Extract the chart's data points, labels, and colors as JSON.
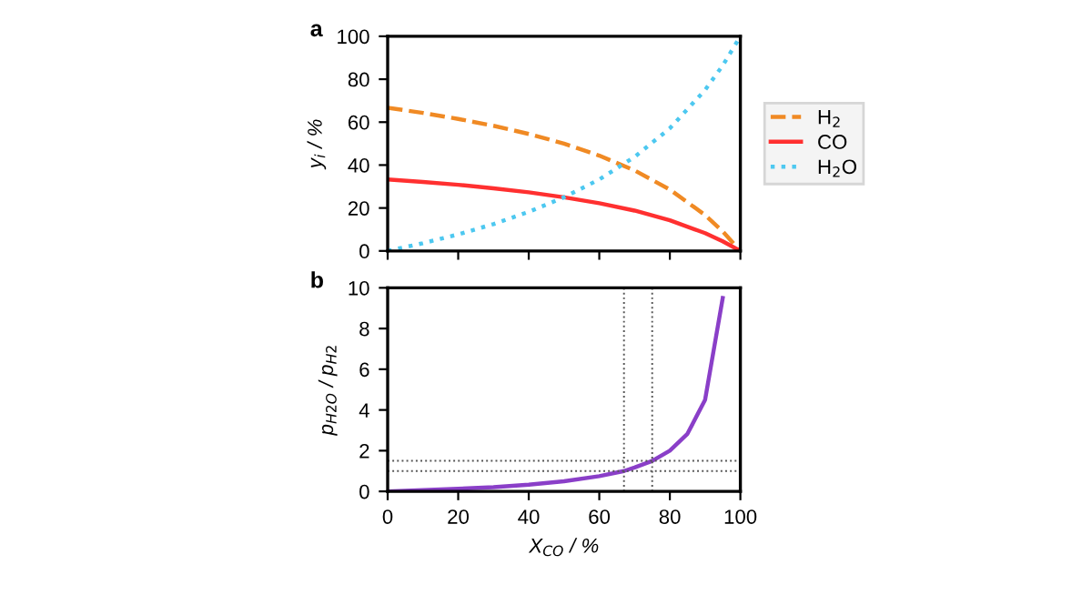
{
  "chart_data": [
    {
      "type": "line",
      "ylabel": "y$_{i}$ / %",
      "annotations": [
        "a"
      ],
      "x": [
        0,
        10,
        20,
        30,
        40,
        50,
        60,
        70,
        80,
        90,
        95,
        100
      ],
      "xlim": [
        0,
        100
      ],
      "xticks": [
        {
          "value": 0,
          "label": null
        },
        {
          "value": 20,
          "label": null
        },
        {
          "value": 40,
          "label": null
        },
        {
          "value": 60,
          "label": null
        },
        {
          "value": 80,
          "label": null
        },
        {
          "value": 100,
          "label": null
        }
      ],
      "ylim": [
        0,
        100
      ],
      "yticks": [
        0,
        20,
        40,
        60,
        80,
        100
      ],
      "tick_labels": "y",
      "legend": "right",
      "grid": false,
      "series": [
        {
          "name": "H$_{2}$",
          "color": "#f08a24",
          "line_style": "dashed",
          "values": [
            66.7,
            64.3,
            61.5,
            58.3,
            54.5,
            50,
            44.4,
            37.5,
            28.6,
            16.7,
            9.1,
            0
          ]
        },
        {
          "name": "CO",
          "color": "#ff3030",
          "line_style": "solid",
          "values": [
            33.3,
            32.1,
            30.8,
            29.2,
            27.3,
            25,
            22.2,
            18.8,
            14.3,
            8.3,
            4.5,
            0
          ]
        },
        {
          "name": "H$_{2}$O",
          "color": "#4dc8f0",
          "line_style": "dotted",
          "values": [
            0,
            3.6,
            7.7,
            12.5,
            18.2,
            25,
            33.3,
            43.8,
            57.1,
            75,
            86.4,
            100
          ]
        }
      ]
    },
    {
      "type": "line",
      "xlabel": "X$_{CO}$ / %",
      "ylabel": "p$_{H2O}$ / p$_{H2}$",
      "annotations": [
        "b"
      ],
      "xlim": [
        0,
        100
      ],
      "xticks": [
        0,
        20,
        40,
        60,
        80,
        100
      ],
      "ylim": [
        0,
        10
      ],
      "yticks": [
        0,
        2,
        4,
        6,
        8,
        10
      ],
      "legend": false,
      "grid": false,
      "series": [
        {
          "color": "#8a3fc8",
          "line_style": "solid",
          "x": [
            0,
            10,
            20,
            30,
            40,
            50,
            60,
            67,
            70,
            75,
            80,
            85,
            90,
            95
          ],
          "values": [
            0,
            0.06,
            0.13,
            0.21,
            0.33,
            0.5,
            0.75,
            1.0,
            1.17,
            1.5,
            2,
            2.83,
            4.5,
            9.5
          ]
        }
      ],
      "ref_lines": [
        {
          "axis": "x",
          "value": 67,
          "color": "#555555",
          "line_style": "dotted"
        },
        {
          "axis": "x",
          "value": 75,
          "color": "#555555",
          "line_style": "dotted"
        },
        {
          "axis": "y",
          "value": 1,
          "color": "#555555",
          "line_style": "dotted"
        },
        {
          "axis": "y",
          "value": 1.5,
          "color": "#555555",
          "line_style": "dotted"
        }
      ]
    }
  ]
}
